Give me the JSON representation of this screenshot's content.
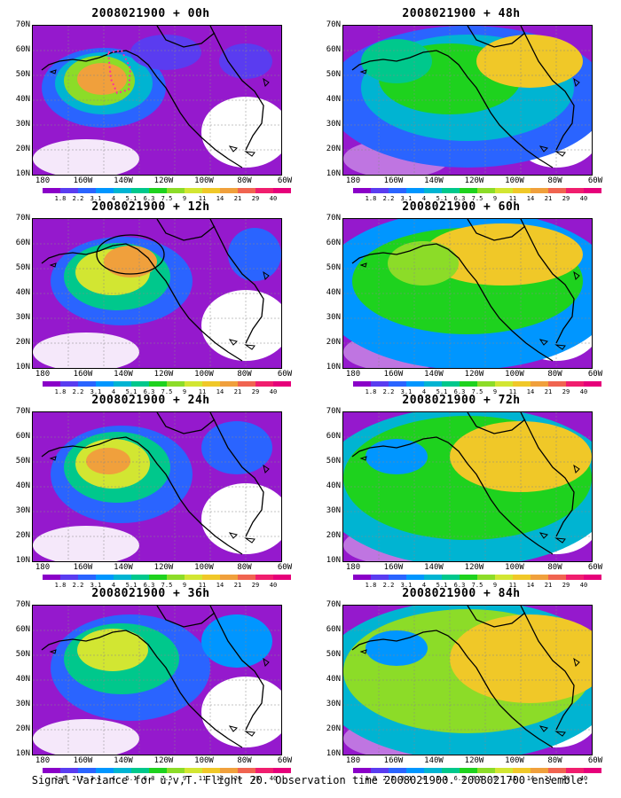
{
  "panels": [
    {
      "title": "2008021900 + 00h"
    },
    {
      "title": "2008021900 + 48h"
    },
    {
      "title": "2008021900 + 12h"
    },
    {
      "title": "2008021900 + 60h"
    },
    {
      "title": "2008021900 + 24h"
    },
    {
      "title": "2008021900 + 72h"
    },
    {
      "title": "2008021900 + 36h"
    },
    {
      "title": "2008021900 + 84h"
    }
  ],
  "axes": {
    "y_labels": [
      "70N",
      "60N",
      "50N",
      "40N",
      "30N",
      "20N",
      "10N"
    ],
    "x_labels": [
      "180",
      "160W",
      "140W",
      "120W",
      "100W",
      "80W",
      "60W"
    ]
  },
  "colorbar": {
    "labels": [
      "1.8",
      "2.2",
      "3.1",
      "4",
      "5.1",
      "6.3",
      "7.5",
      "9",
      "11",
      "14",
      "21",
      "29",
      "40"
    ],
    "colors": [
      "#8a00c8",
      "#5a3cf0",
      "#2a64ff",
      "#0096ff",
      "#00b4d2",
      "#00c88c",
      "#1ed21e",
      "#8cdc28",
      "#d2e632",
      "#f0c828",
      "#f0a03c",
      "#f06450",
      "#f01e6e",
      "#e6007a"
    ]
  },
  "caption": "Signal Variance for u,v,T. Flight 20. Observation time 2008021900. 2008021700 ensemble."
}
